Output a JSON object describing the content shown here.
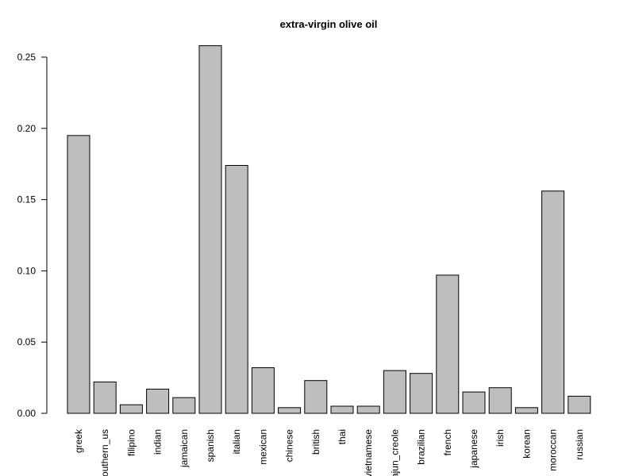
{
  "chart_data": {
    "type": "bar",
    "title": "extra-virgin olive oil",
    "xlabel": "",
    "ylabel": "",
    "ylim": [
      0,
      0.26
    ],
    "y_ticks": [
      0.0,
      0.05,
      0.1,
      0.15,
      0.2,
      0.25
    ],
    "y_tick_labels": [
      "0.00",
      "0.05",
      "0.10",
      "0.15",
      "0.20",
      "0.25"
    ],
    "categories": [
      "greek",
      "southern_us",
      "filipino",
      "indian",
      "jamaican",
      "spanish",
      "italian",
      "mexican",
      "chinese",
      "british",
      "thai",
      "vietnamese",
      "cajun_creole",
      "brazilian",
      "french",
      "japanese",
      "irish",
      "korean",
      "moroccan",
      "russian"
    ],
    "values": [
      0.195,
      0.022,
      0.006,
      0.017,
      0.011,
      0.258,
      0.174,
      0.032,
      0.004,
      0.023,
      0.005,
      0.005,
      0.03,
      0.028,
      0.097,
      0.015,
      0.018,
      0.004,
      0.156,
      0.012
    ],
    "grid": false,
    "legend": "none",
    "bar_fill": "#bebebe",
    "bar_stroke": "#000000"
  }
}
